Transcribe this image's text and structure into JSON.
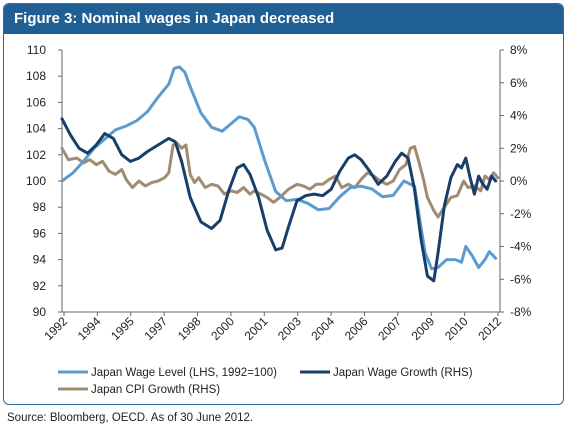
{
  "header": {
    "title": "Figure 3: Nominal wages in Japan decreased"
  },
  "source": "Source: Bloomberg, OECD. As of 30 June 2012.",
  "colors": {
    "header": "#1f5f93",
    "wage_level": "#5b9bd0",
    "wage_growth": "#1a3e6a",
    "cpi": "#a08c73"
  },
  "chart_data": {
    "type": "line",
    "title": "Figure 3: Nominal wages in Japan decreased",
    "x_ticks": [
      "1992",
      "1994",
      "1995",
      "1997",
      "1998",
      "2000",
      "2001",
      "2003",
      "2004",
      "2006",
      "2007",
      "2009",
      "2010",
      "2012"
    ],
    "xlim": [
      1992.0,
      2012.5
    ],
    "y_left": {
      "ticks": [
        "110",
        "108",
        "106",
        "104",
        "102",
        "100",
        "98",
        "96",
        "94",
        "92",
        "90"
      ],
      "ylim": [
        90,
        110
      ]
    },
    "y_right": {
      "ticks": [
        "8%",
        "6%",
        "4%",
        "2%",
        "0%",
        "-2%",
        "-4%",
        "-6%",
        "-8%"
      ],
      "ylim": [
        -8,
        8
      ]
    },
    "grid": false,
    "legend_position": "bottom",
    "series": [
      {
        "name": "Japan Wage Level (LHS, 1992=100)",
        "axis": "left",
        "color": "#5b9bd0",
        "points": [
          [
            1992.0,
            100.0
          ],
          [
            1992.5,
            100.6
          ],
          [
            1993.0,
            101.5
          ],
          [
            1993.5,
            102.5
          ],
          [
            1994.0,
            103.2
          ],
          [
            1994.5,
            103.9
          ],
          [
            1995.0,
            104.2
          ],
          [
            1995.5,
            104.6
          ],
          [
            1996.0,
            105.3
          ],
          [
            1996.5,
            106.4
          ],
          [
            1997.0,
            107.4
          ],
          [
            1997.25,
            108.6
          ],
          [
            1997.5,
            108.7
          ],
          [
            1997.75,
            108.3
          ],
          [
            1998.0,
            107.2
          ],
          [
            1998.5,
            105.2
          ],
          [
            1999.0,
            104.1
          ],
          [
            1999.5,
            103.8
          ],
          [
            2000.0,
            104.5
          ],
          [
            2000.3,
            104.9
          ],
          [
            2000.7,
            104.7
          ],
          [
            2001.0,
            104.1
          ],
          [
            2001.5,
            101.5
          ],
          [
            2002.0,
            99.2
          ],
          [
            2002.5,
            98.5
          ],
          [
            2003.0,
            98.6
          ],
          [
            2003.5,
            98.3
          ],
          [
            2004.0,
            97.8
          ],
          [
            2004.5,
            97.9
          ],
          [
            2005.0,
            98.8
          ],
          [
            2005.5,
            99.5
          ],
          [
            2006.0,
            99.6
          ],
          [
            2006.5,
            99.4
          ],
          [
            2007.0,
            98.8
          ],
          [
            2007.5,
            98.9
          ],
          [
            2008.0,
            100.0
          ],
          [
            2008.5,
            99.6
          ],
          [
            2008.8,
            96.5
          ],
          [
            2009.0,
            94.5
          ],
          [
            2009.3,
            93.3
          ],
          [
            2009.6,
            93.4
          ],
          [
            2010.0,
            94.0
          ],
          [
            2010.4,
            94.0
          ],
          [
            2010.7,
            93.8
          ],
          [
            2010.9,
            95.0
          ],
          [
            2011.2,
            94.3
          ],
          [
            2011.5,
            93.4
          ],
          [
            2011.8,
            94.0
          ],
          [
            2012.0,
            94.6
          ],
          [
            2012.3,
            94.1
          ]
        ]
      },
      {
        "name": "Japan Wage Growth (RHS)",
        "axis": "right",
        "color": "#1a3e6a",
        "points": [
          [
            1992.0,
            3.8
          ],
          [
            1992.4,
            2.8
          ],
          [
            1992.8,
            2.0
          ],
          [
            1993.2,
            1.7
          ],
          [
            1993.6,
            2.2
          ],
          [
            1994.0,
            2.9
          ],
          [
            1994.4,
            2.6
          ],
          [
            1994.8,
            1.6
          ],
          [
            1995.2,
            1.2
          ],
          [
            1995.6,
            1.4
          ],
          [
            1996.0,
            1.8
          ],
          [
            1996.5,
            2.2
          ],
          [
            1997.0,
            2.6
          ],
          [
            1997.3,
            2.4
          ],
          [
            1997.6,
            1.2
          ],
          [
            1998.0,
            -1.0
          ],
          [
            1998.5,
            -2.5
          ],
          [
            1999.0,
            -2.9
          ],
          [
            1999.4,
            -2.4
          ],
          [
            1999.8,
            -0.6
          ],
          [
            2000.2,
            0.8
          ],
          [
            2000.5,
            1.0
          ],
          [
            2000.8,
            0.4
          ],
          [
            2001.2,
            -1.0
          ],
          [
            2001.6,
            -3.0
          ],
          [
            2002.0,
            -4.2
          ],
          [
            2002.3,
            -4.1
          ],
          [
            2002.6,
            -2.8
          ],
          [
            2003.0,
            -1.2
          ],
          [
            2003.4,
            -0.9
          ],
          [
            2003.8,
            -0.8
          ],
          [
            2004.2,
            -0.9
          ],
          [
            2004.6,
            -0.5
          ],
          [
            2005.0,
            0.6
          ],
          [
            2005.4,
            1.4
          ],
          [
            2005.7,
            1.6
          ],
          [
            2006.0,
            1.3
          ],
          [
            2006.4,
            0.6
          ],
          [
            2006.8,
            -0.2
          ],
          [
            2007.2,
            0.3
          ],
          [
            2007.6,
            1.2
          ],
          [
            2007.9,
            1.7
          ],
          [
            2008.2,
            1.4
          ],
          [
            2008.5,
            -0.5
          ],
          [
            2008.8,
            -3.5
          ],
          [
            2009.1,
            -5.8
          ],
          [
            2009.4,
            -6.1
          ],
          [
            2009.6,
            -4.4
          ],
          [
            2009.9,
            -1.5
          ],
          [
            2010.2,
            0.2
          ],
          [
            2010.5,
            1.0
          ],
          [
            2010.7,
            0.8
          ],
          [
            2010.9,
            1.4
          ],
          [
            2011.1,
            0.2
          ],
          [
            2011.3,
            -0.8
          ],
          [
            2011.5,
            0.3
          ],
          [
            2011.7,
            -0.2
          ],
          [
            2011.9,
            -0.5
          ],
          [
            2012.1,
            0.3
          ],
          [
            2012.3,
            0.0
          ]
        ]
      },
      {
        "name": "Japan CPI Growth (RHS)",
        "axis": "right",
        "color": "#a08c73",
        "points": [
          [
            1992.0,
            2.0
          ],
          [
            1992.3,
            1.3
          ],
          [
            1992.7,
            1.4
          ],
          [
            1993.0,
            1.1
          ],
          [
            1993.3,
            1.3
          ],
          [
            1993.6,
            1.0
          ],
          [
            1993.9,
            1.2
          ],
          [
            1994.2,
            0.6
          ],
          [
            1994.5,
            0.4
          ],
          [
            1994.8,
            0.7
          ],
          [
            1995.0,
            0.1
          ],
          [
            1995.3,
            -0.4
          ],
          [
            1995.6,
            0.0
          ],
          [
            1995.9,
            -0.3
          ],
          [
            1996.2,
            -0.1
          ],
          [
            1996.5,
            0.0
          ],
          [
            1996.8,
            0.2
          ],
          [
            1997.0,
            0.5
          ],
          [
            1997.2,
            2.2
          ],
          [
            1997.4,
            2.3
          ],
          [
            1997.6,
            2.0
          ],
          [
            1997.8,
            2.2
          ],
          [
            1998.0,
            0.4
          ],
          [
            1998.2,
            -0.1
          ],
          [
            1998.4,
            0.2
          ],
          [
            1998.7,
            -0.4
          ],
          [
            1999.0,
            -0.2
          ],
          [
            1999.3,
            -0.3
          ],
          [
            1999.6,
            -0.8
          ],
          [
            1999.9,
            -0.6
          ],
          [
            2000.2,
            -0.7
          ],
          [
            2000.5,
            -0.4
          ],
          [
            2000.8,
            -0.8
          ],
          [
            2001.0,
            -0.6
          ],
          [
            2001.3,
            -0.8
          ],
          [
            2001.6,
            -1.0
          ],
          [
            2001.9,
            -1.3
          ],
          [
            2002.2,
            -1.0
          ],
          [
            2002.6,
            -0.5
          ],
          [
            2003.0,
            -0.2
          ],
          [
            2003.3,
            -0.3
          ],
          [
            2003.6,
            -0.5
          ],
          [
            2003.9,
            -0.2
          ],
          [
            2004.2,
            -0.2
          ],
          [
            2004.5,
            0.1
          ],
          [
            2004.8,
            0.3
          ],
          [
            2005.1,
            -0.4
          ],
          [
            2005.4,
            -0.2
          ],
          [
            2005.7,
            -0.4
          ],
          [
            2006.0,
            0.1
          ],
          [
            2006.3,
            0.5
          ],
          [
            2006.6,
            0.3
          ],
          [
            2006.9,
            0.0
          ],
          [
            2007.2,
            -0.2
          ],
          [
            2007.5,
            0.0
          ],
          [
            2007.8,
            0.7
          ],
          [
            2008.1,
            1.0
          ],
          [
            2008.3,
            2.0
          ],
          [
            2008.5,
            2.1
          ],
          [
            2008.7,
            1.2
          ],
          [
            2008.9,
            0.2
          ],
          [
            2009.1,
            -1.0
          ],
          [
            2009.4,
            -1.8
          ],
          [
            2009.6,
            -2.2
          ],
          [
            2009.9,
            -1.6
          ],
          [
            2010.2,
            -1.0
          ],
          [
            2010.5,
            -0.9
          ],
          [
            2010.8,
            0.0
          ],
          [
            2011.0,
            -0.4
          ],
          [
            2011.3,
            -0.3
          ],
          [
            2011.6,
            -0.6
          ],
          [
            2011.8,
            0.3
          ],
          [
            2012.0,
            0.1
          ],
          [
            2012.2,
            0.5
          ],
          [
            2012.4,
            0.2
          ]
        ]
      }
    ]
  }
}
